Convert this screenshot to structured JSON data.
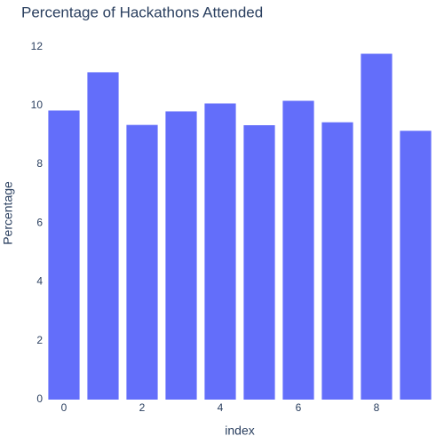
{
  "chart_data": {
    "type": "bar",
    "title": "Percentage of Hackathons Attended",
    "xlabel": "index",
    "ylabel": "Percentage",
    "x": [
      0,
      1,
      2,
      3,
      4,
      5,
      6,
      7,
      8,
      9
    ],
    "values": [
      9.83,
      11.13,
      9.34,
      9.8,
      10.07,
      9.33,
      10.16,
      9.43,
      11.76,
      9.14
    ],
    "xticks": [
      0,
      2,
      4,
      6,
      8
    ],
    "yticks": [
      0,
      2,
      4,
      6,
      8,
      10,
      12
    ],
    "xlim": [
      -0.5,
      9.5
    ],
    "ylim": [
      0,
      12.38
    ],
    "grid": false,
    "colors": {
      "bar": "#636efa",
      "text": "#2a3f5f",
      "background": "#ffffff"
    }
  }
}
